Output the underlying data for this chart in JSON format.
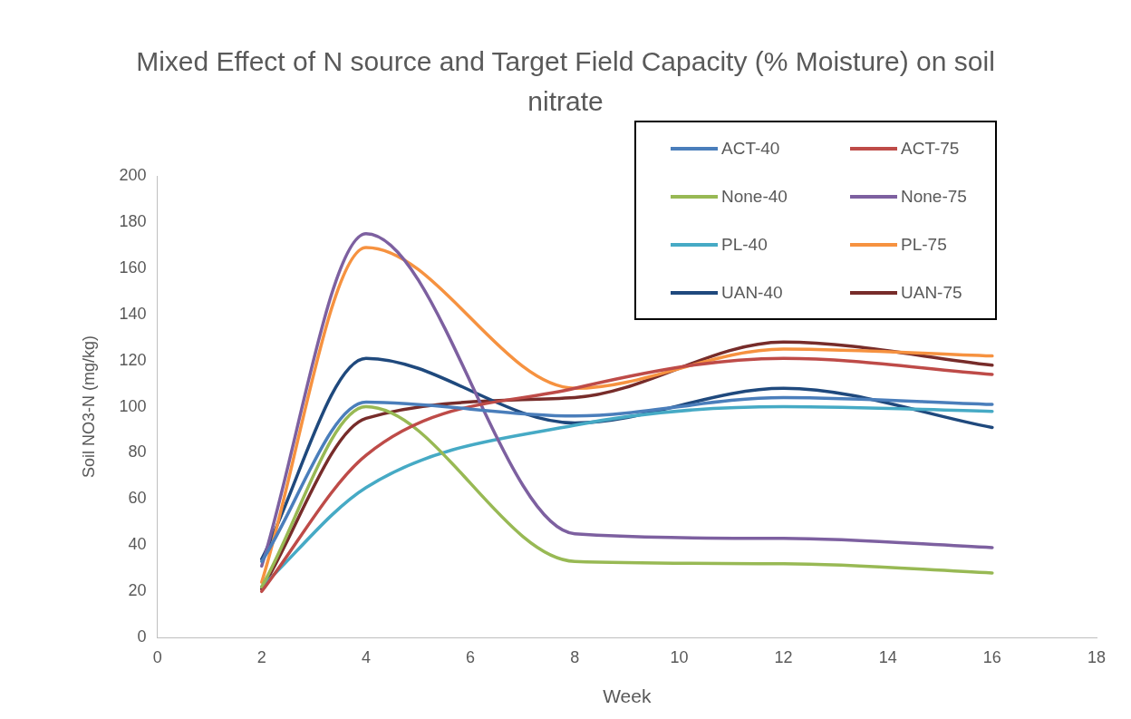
{
  "chart_data": {
    "type": "line",
    "title": "Mixed Effect of N source and Target Field Capacity (% Moisture) on soil nitrate",
    "xlabel": "Week",
    "ylabel": "Soil NO3-N (mg/kg)",
    "x": [
      2,
      4,
      8,
      12,
      16
    ],
    "xlim": [
      0,
      18
    ],
    "xticks": [
      0,
      2,
      4,
      6,
      8,
      10,
      12,
      14,
      16,
      18
    ],
    "ylim": [
      0,
      200
    ],
    "yticks": [
      0,
      20,
      40,
      60,
      80,
      100,
      120,
      140,
      160,
      180,
      200
    ],
    "legend": "top right",
    "marker": "none",
    "line_style": "solid",
    "series": [
      {
        "name": "ACT-40",
        "color": "#4a7ebb",
        "values": [
          33,
          102,
          96,
          104,
          101
        ]
      },
      {
        "name": "ACT-75",
        "color": "#be4b48",
        "values": [
          20,
          79,
          108,
          121,
          114
        ]
      },
      {
        "name": "None-40",
        "color": "#98b954",
        "values": [
          22,
          100,
          33,
          32,
          28
        ]
      },
      {
        "name": "None-75",
        "color": "#7d60a0",
        "values": [
          31,
          175,
          45,
          43,
          39
        ]
      },
      {
        "name": "PL-40",
        "color": "#46aac5",
        "values": [
          22,
          65,
          92,
          100,
          98
        ]
      },
      {
        "name": "PL-75",
        "color": "#f69240",
        "values": [
          24,
          169,
          108,
          125,
          122
        ]
      },
      {
        "name": "UAN-40",
        "color": "#1f497d",
        "values": [
          34,
          121,
          93,
          108,
          91
        ]
      },
      {
        "name": "UAN-75",
        "color": "#772c2a",
        "values": [
          21,
          95,
          104,
          128,
          118
        ]
      }
    ]
  }
}
